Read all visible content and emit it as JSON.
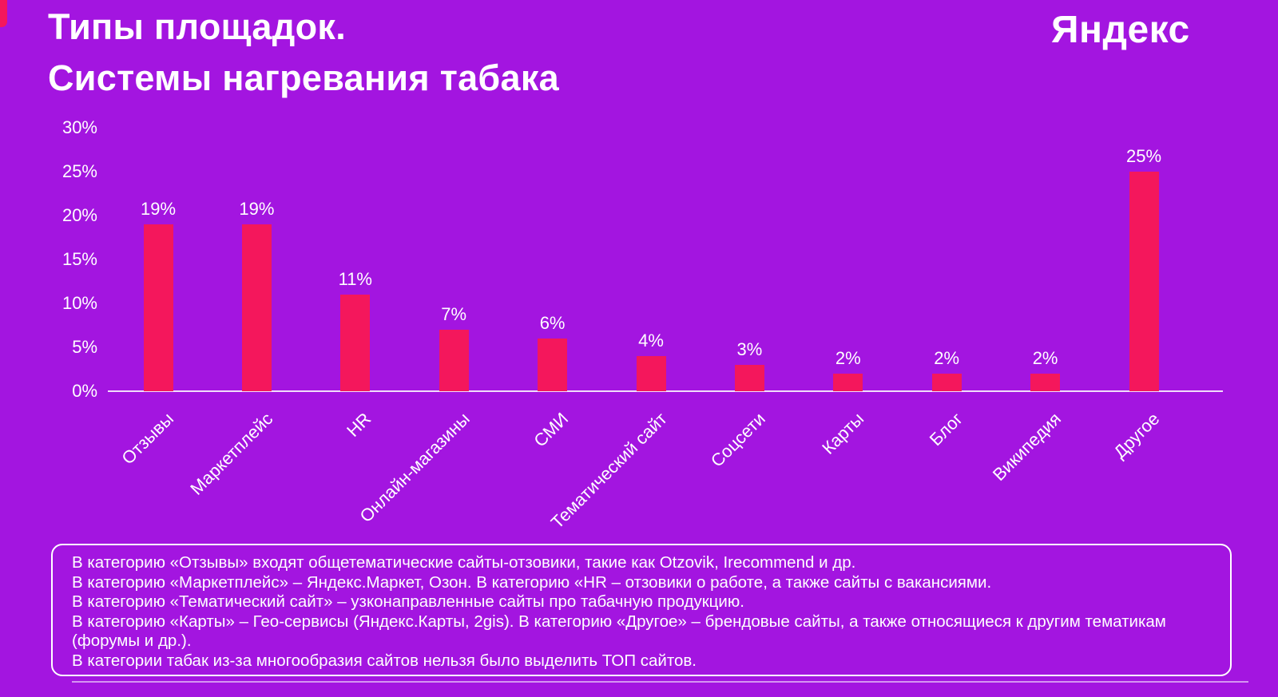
{
  "header": {
    "title_line1": "Типы площадок.",
    "title_line2": "Системы нагревания табака",
    "logo_text": "Яндекс"
  },
  "colors": {
    "background": "#a315e0",
    "bar": "#f4175c",
    "text": "#ffffff"
  },
  "chart_data": {
    "type": "bar",
    "title": "Типы площадок. Системы нагревания табака",
    "categories": [
      "Отзывы",
      "Маркетплейс",
      "HR",
      "Онлайн-магазины",
      "СМИ",
      "Тематический сайт",
      "Соцсети",
      "Карты",
      "Блог",
      "Википедия",
      "Другое"
    ],
    "values": [
      19,
      19,
      11,
      7,
      6,
      4,
      3,
      2,
      2,
      2,
      25
    ],
    "value_labels": [
      "19%",
      "19%",
      "11%",
      "7%",
      "6%",
      "4%",
      "3%",
      "2%",
      "2%",
      "2%",
      "25%"
    ],
    "yticks": [
      "30%",
      "25%",
      "20%",
      "15%",
      "10%",
      "5%",
      "0%"
    ],
    "ylim": [
      0,
      30
    ],
    "grid": false,
    "legend": false,
    "bar_color": "#f4175c",
    "background_color": "#a315e0"
  },
  "footnote": {
    "lines": [
      "В категорию «Отзывы» входят общетематические сайты-отзовики, такие как Otzovik, Irecommend и др.",
      "В категорию «Маркетплейс» – Яндекс.Маркет, Озон. В категорию «HR – отзовики о работе, а также сайты с вакансиями.",
      "В категорию «Тематический сайт» – узконаправленные сайты про табачную продукцию.",
      "В категорию «Карты» – Гео-сервисы (Яндекс.Карты, 2gis). В категорию «Другое» – брендовые сайты, а также относящиеся к другим тематикам",
      "(форумы и др.).",
      "В категории табак из-за многообразия сайтов нельзя было выделить ТОП сайтов."
    ]
  }
}
